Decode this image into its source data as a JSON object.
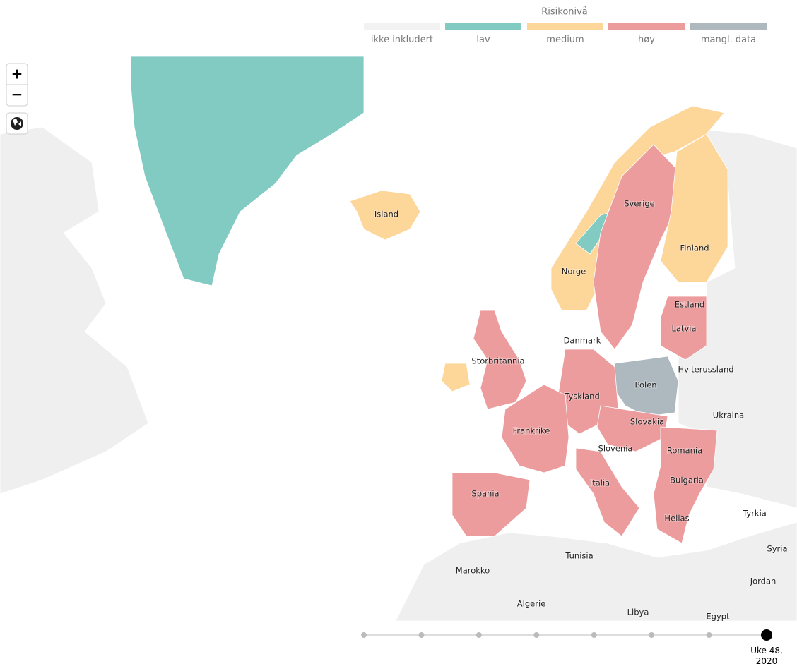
{
  "legend": {
    "title": "Risikonivå",
    "items": [
      {
        "label": "ikke inkludert",
        "color": "#f2f2f2"
      },
      {
        "label": "lav",
        "color": "#82cbc3"
      },
      {
        "label": "medium",
        "color": "#fdd69a"
      },
      {
        "label": "høy",
        "color": "#ec9c9d"
      },
      {
        "label": "mangl. data",
        "color": "#aeb9bf"
      }
    ]
  },
  "controls": {
    "zoom_in": "+",
    "zoom_out": "−"
  },
  "labels": [
    "Island",
    "Sverige",
    "Finland",
    "Norge",
    "Estland",
    "Latvia",
    "Danmark",
    "Storbritannia",
    "Hviterussland",
    "Polen",
    "Tyskland",
    "Ukraina",
    "Slovakia",
    "Frankrike",
    "Slovenia",
    "Romania",
    "Bulgaria",
    "Italia",
    "Spania",
    "Tyrkia",
    "Hellas",
    "Syria",
    "Tunisia",
    "Marokko",
    "Jordan",
    "Algerie",
    "Libya",
    "Egypt"
  ],
  "timeline": {
    "label": [
      "Uke 48,",
      "2020"
    ]
  }
}
